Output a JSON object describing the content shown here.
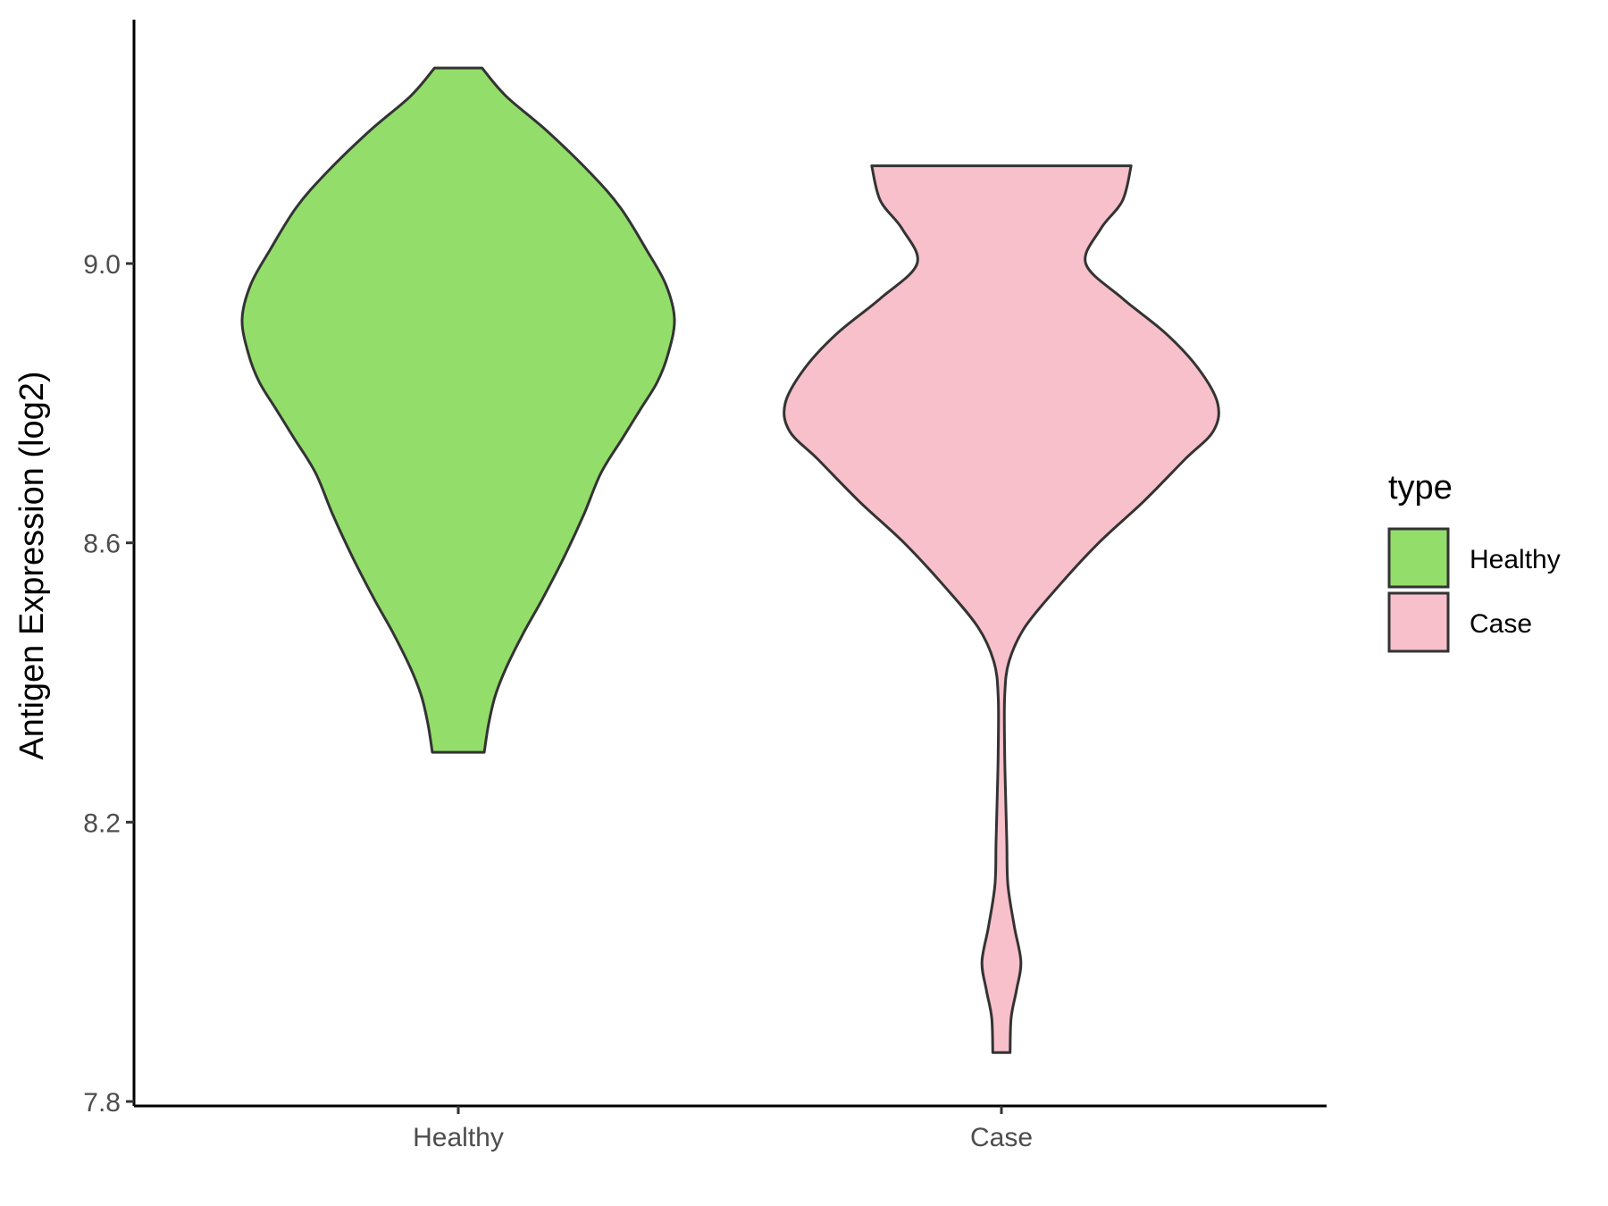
{
  "chart_data": {
    "type": "violin",
    "title": "",
    "xlabel": "",
    "ylabel": "Antigen Expression (log2)",
    "ylim": [
      7.8,
      9.36
    ],
    "yticks": [
      "7.8",
      "8.2",
      "8.6",
      "9.0"
    ],
    "ytick_values": [
      7.8,
      8.2,
      8.6,
      9.0
    ],
    "categories": [
      "Healthy",
      "Case"
    ],
    "grid": false,
    "legend": {
      "title": "type",
      "position": "right",
      "entries": [
        {
          "label": "Healthy",
          "color": "#93dd6b"
        },
        {
          "label": "Case",
          "color": "#f7c0cb"
        }
      ]
    },
    "series": [
      {
        "name": "Healthy",
        "color": "#93dd6b",
        "range": [
          8.3,
          9.28
        ],
        "density_profile": [
          [
            9.28,
            0.11
          ],
          [
            9.24,
            0.22
          ],
          [
            9.19,
            0.41
          ],
          [
            9.13,
            0.61
          ],
          [
            9.08,
            0.75
          ],
          [
            9.02,
            0.87
          ],
          [
            8.97,
            0.96
          ],
          [
            8.92,
            1.0
          ],
          [
            8.87,
            0.97
          ],
          [
            8.83,
            0.92
          ],
          [
            8.79,
            0.84
          ],
          [
            8.75,
            0.76
          ],
          [
            8.7,
            0.66
          ],
          [
            8.64,
            0.58
          ],
          [
            8.58,
            0.49
          ],
          [
            8.52,
            0.39
          ],
          [
            8.47,
            0.3
          ],
          [
            8.42,
            0.22
          ],
          [
            8.38,
            0.17
          ],
          [
            8.34,
            0.14
          ],
          [
            8.3,
            0.12
          ]
        ]
      },
      {
        "name": "Case",
        "color": "#f7c0cb",
        "range": [
          7.87,
          9.14
        ],
        "density_profile": [
          [
            9.14,
            0.6
          ],
          [
            9.09,
            0.56
          ],
          [
            9.05,
            0.46
          ],
          [
            9.0,
            0.39
          ],
          [
            8.95,
            0.56
          ],
          [
            8.9,
            0.76
          ],
          [
            8.85,
            0.91
          ],
          [
            8.8,
            1.0
          ],
          [
            8.76,
            0.98
          ],
          [
            8.72,
            0.85
          ],
          [
            8.66,
            0.66
          ],
          [
            8.6,
            0.45
          ],
          [
            8.54,
            0.27
          ],
          [
            8.48,
            0.11
          ],
          [
            8.43,
            0.035
          ],
          [
            8.38,
            0.015
          ],
          [
            8.3,
            0.015
          ],
          [
            8.23,
            0.02
          ],
          [
            8.17,
            0.025
          ],
          [
            8.11,
            0.03
          ],
          [
            8.05,
            0.06
          ],
          [
            8.0,
            0.09
          ],
          [
            7.96,
            0.07
          ],
          [
            7.92,
            0.045
          ],
          [
            7.87,
            0.04
          ]
        ]
      }
    ]
  }
}
